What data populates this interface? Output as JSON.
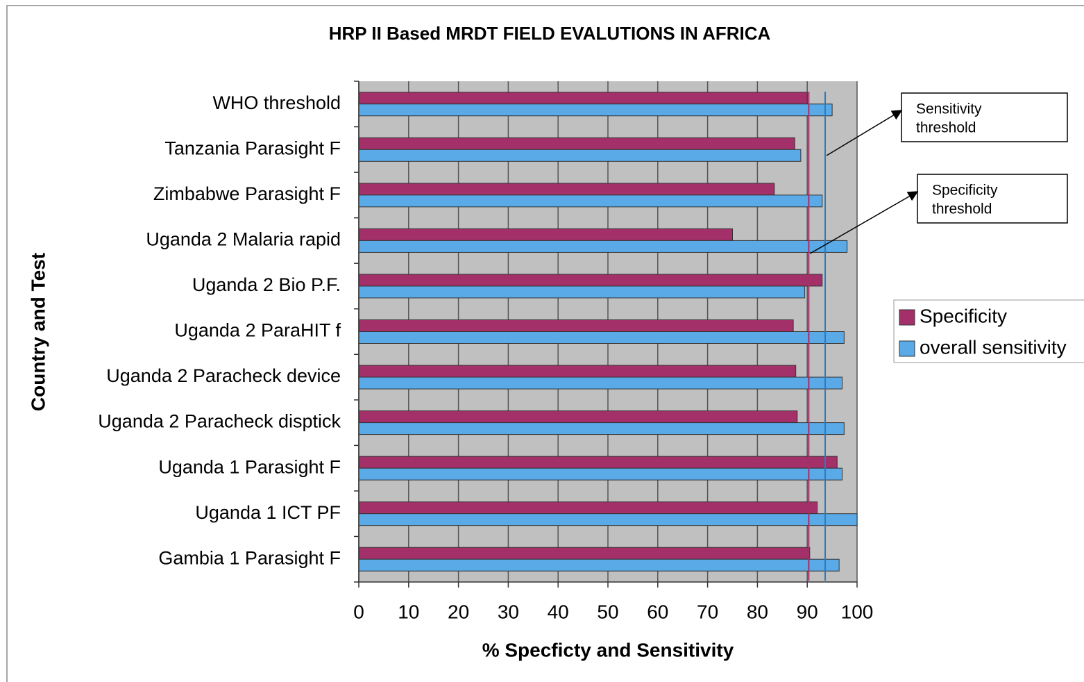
{
  "chart_data": {
    "type": "bar",
    "orientation": "horizontal",
    "title": "HRP II Based MRDT FIELD EVALUTIONS IN AFRICA",
    "x_label": "% Specficty and Sensitivity",
    "y_label": "Country and Test",
    "categories": [
      "WHO threshold",
      "Tanzania Parasight F",
      "Zimbabwe Parasight F",
      "Uganda 2 Malaria rapid",
      "Uganda 2 Bio P.F.",
      "Uganda 2 ParaHIT f",
      "Uganda 2 Paracheck device",
      "Uganda 2 Paracheck disptick",
      "Uganda 1 Parasight F",
      "Uganda 1 ICT PF",
      "Gambia 1 Parasight  F"
    ],
    "series": [
      {
        "name": "Specificity",
        "color": "#a33069",
        "values": [
          90,
          87.5,
          83.4,
          75,
          93,
          87.2,
          87.7,
          88,
          96,
          92,
          90.5
        ]
      },
      {
        "name": "overall sensitivity",
        "color": "#5aaae8",
        "values": [
          95,
          88.7,
          93,
          98,
          89.5,
          97.4,
          97,
          97.4,
          97,
          100,
          96.4
        ]
      }
    ],
    "xlim": [
      0,
      100
    ],
    "xticks": [
      0,
      10,
      20,
      30,
      40,
      50,
      60,
      70,
      80,
      90,
      100
    ],
    "grid": true,
    "legend": "right",
    "annotations": [
      {
        "lines": [
          "Sensitivity",
          "threshold"
        ],
        "x": 93.6,
        "color": "#2a7ac0"
      },
      {
        "lines": [
          "Specificity",
          "threshold"
        ],
        "x": 90.3,
        "color": "#a33069"
      }
    ]
  }
}
